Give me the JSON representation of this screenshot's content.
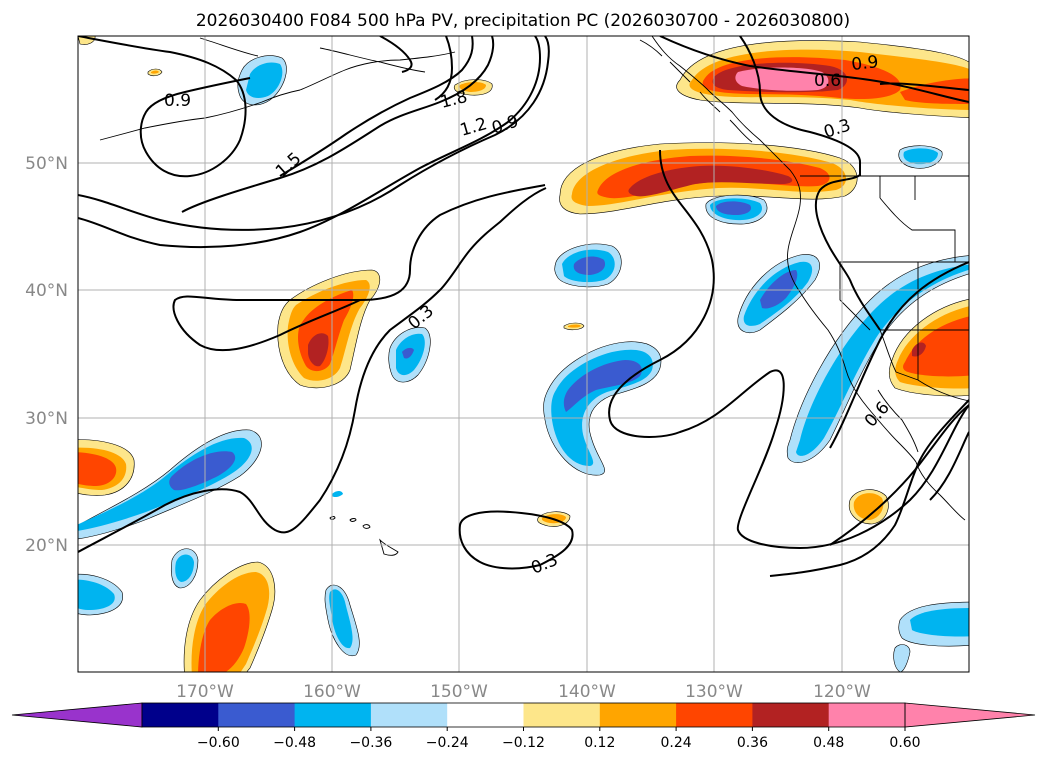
{
  "title": "2026030400 F084 500 hPa PV, precipitation PC (2026030700 - 2026030800)",
  "map": {
    "lon_ticks": [
      "170°W",
      "160°W",
      "150°W",
      "140°W",
      "130°W",
      "120°W"
    ],
    "lat_ticks": [
      "50°N",
      "40°N",
      "30°N",
      "20°N"
    ]
  },
  "contour_labels": [
    "0.9",
    "1.8",
    "1.5",
    "1.2",
    "0.9",
    "0.9",
    "0.6",
    "0.3",
    "0.3",
    "0.3",
    "0.6"
  ],
  "colorbar": {
    "ticks": [
      "−0.60",
      "−0.48",
      "−0.36",
      "−0.24",
      "−0.12",
      "0.12",
      "0.24",
      "0.36",
      "0.48",
      "0.60"
    ],
    "colors": [
      "#9933cc",
      "#00008b",
      "#3a5bd0",
      "#00b4f0",
      "#b0e0fa",
      "#ffffff",
      "#fde68a",
      "#ffa500",
      "#ff4500",
      "#b22222",
      "#ff82ab",
      "#ff82ab"
    ]
  },
  "palette": {
    "pos1": "#fde68a",
    "pos2": "#ffa500",
    "pos3": "#ff4500",
    "pos4": "#b22222",
    "pos5": "#ff82ab",
    "neg1": "#b0e0fa",
    "neg2": "#00b4f0",
    "neg3": "#3a5bd0"
  }
}
